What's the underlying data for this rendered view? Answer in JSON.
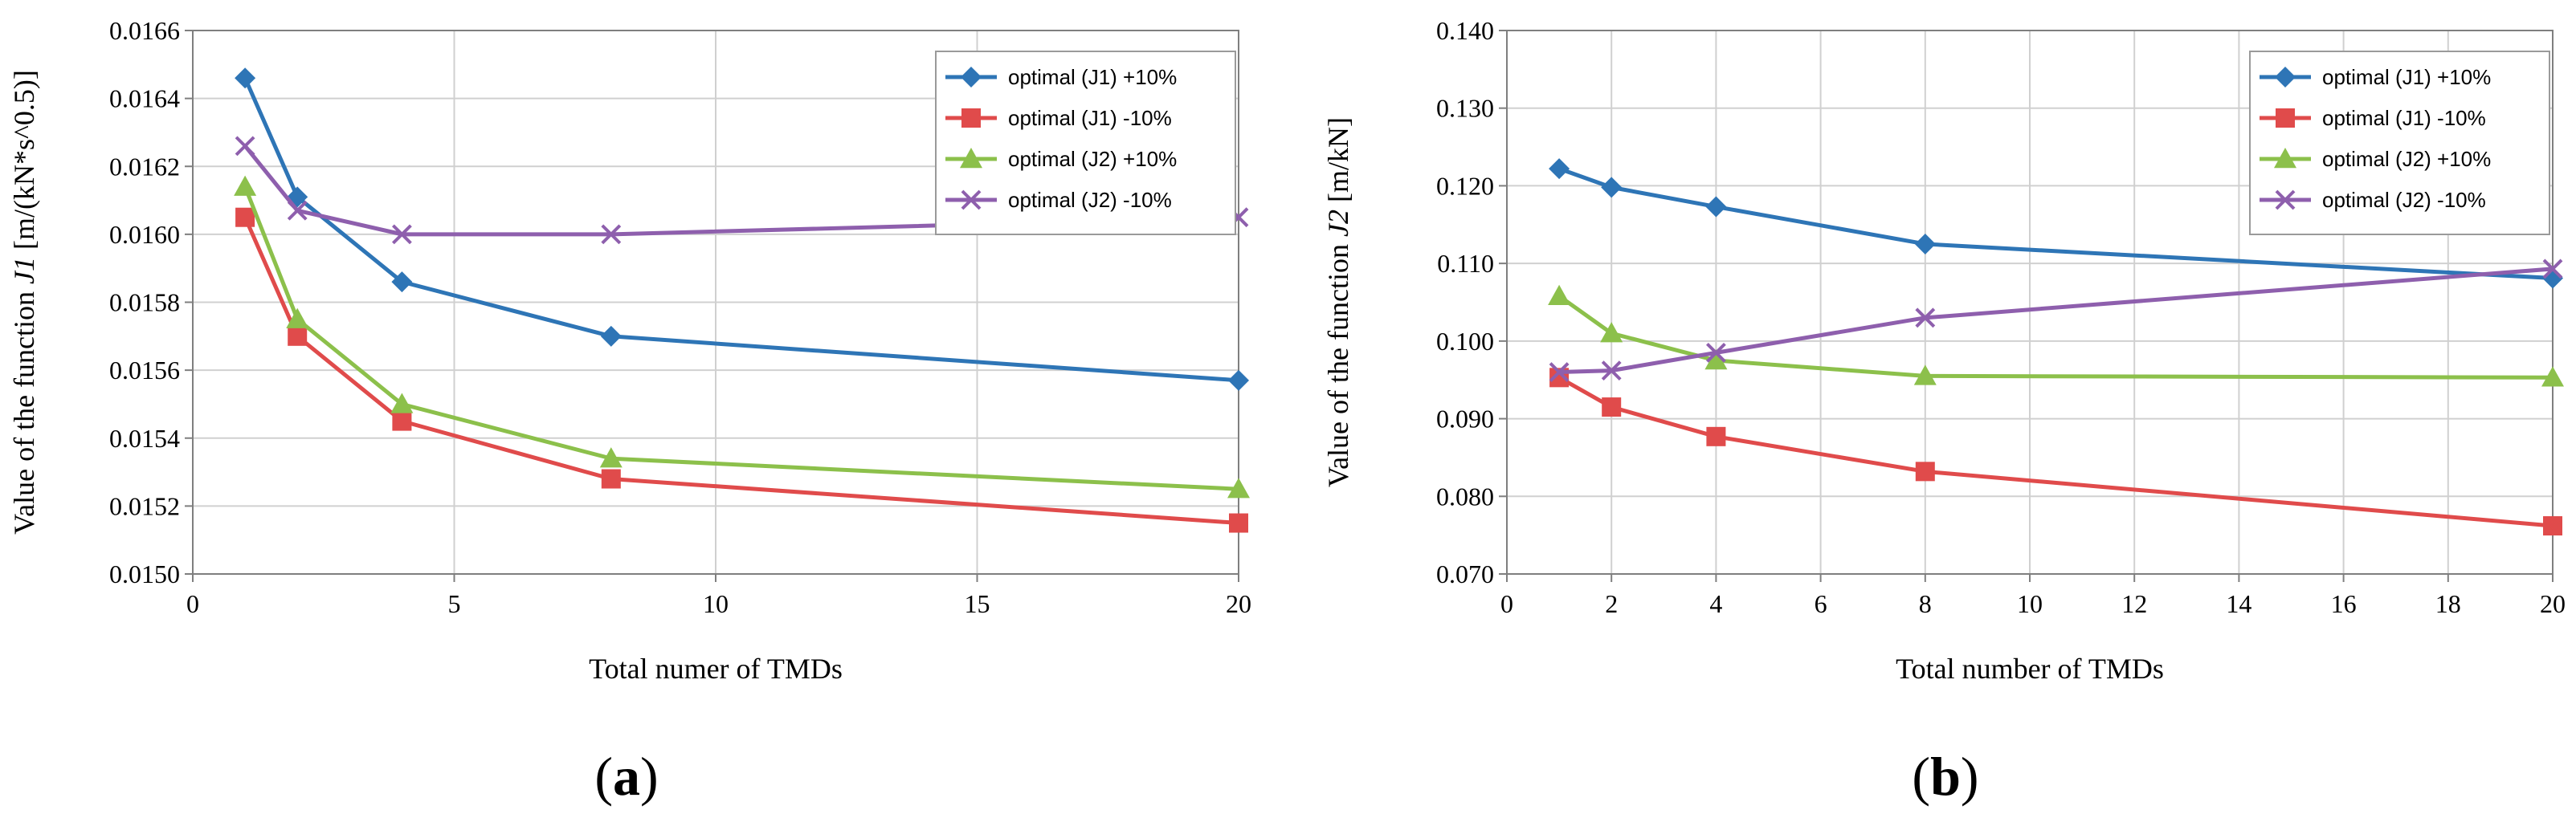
{
  "chart_data": [
    {
      "type": "line",
      "panel_label": "a",
      "xlabel": "Total numer of  TMDs",
      "ylabel_prefix": "Value of the function ",
      "ylabel_var": "J1",
      "ylabel_suffix": " [m/(kN*s^0.5)]",
      "xlim": [
        0,
        20
      ],
      "ylim": [
        0.015,
        0.0166
      ],
      "xticks": [
        0,
        5,
        10,
        15,
        20
      ],
      "xtick_labels": [
        "0",
        "5",
        "10",
        "15",
        "20"
      ],
      "yticks": [
        0.015,
        0.0152,
        0.0154,
        0.0156,
        0.0158,
        0.016,
        0.0162,
        0.0164,
        0.0166
      ],
      "ytick_labels": [
        "0.0150",
        "0.0152",
        "0.0154",
        "0.0156",
        "0.0158",
        "0.0160",
        "0.0162",
        "0.0164",
        "0.0166"
      ],
      "grid": true,
      "legend_position": "top-right",
      "series": [
        {
          "name": "optimal (J1) +10%",
          "color": "#2E75B6",
          "marker": "diamond",
          "x": [
            1,
            2,
            4,
            8,
            20
          ],
          "y": [
            0.01646,
            0.01611,
            0.01586,
            0.0157,
            0.01557
          ]
        },
        {
          "name": "optimal (J1) -10%",
          "color": "#E04B4B",
          "marker": "square",
          "x": [
            1,
            2,
            4,
            8,
            20
          ],
          "y": [
            0.01605,
            0.0157,
            0.01545,
            0.01528,
            0.01515
          ]
        },
        {
          "name": "optimal (J2) +10%",
          "color": "#8CC04B",
          "marker": "triangle",
          "x": [
            1,
            2,
            4,
            8,
            20
          ],
          "y": [
            0.01614,
            0.01575,
            0.0155,
            0.01534,
            0.01525
          ]
        },
        {
          "name": "optimal (J2) -10%",
          "color": "#8E5FAD",
          "marker": "x",
          "x": [
            1,
            2,
            4,
            8,
            20
          ],
          "y": [
            0.01626,
            0.01607,
            0.016,
            0.016,
            0.01605
          ]
        }
      ]
    },
    {
      "type": "line",
      "panel_label": "b",
      "xlabel": "Total number of TMDs",
      "ylabel_prefix": "Value of the function ",
      "ylabel_var": "J2",
      "ylabel_suffix": " [m/kN]",
      "xlim": [
        0,
        20
      ],
      "ylim": [
        0.07,
        0.14
      ],
      "xticks": [
        0,
        2,
        4,
        6,
        8,
        10,
        12,
        14,
        16,
        18,
        20
      ],
      "xtick_labels": [
        "0",
        "2",
        "4",
        "6",
        "8",
        "10",
        "12",
        "14",
        "16",
        "18",
        "20"
      ],
      "yticks": [
        0.07,
        0.08,
        0.09,
        0.1,
        0.11,
        0.12,
        0.13,
        0.14
      ],
      "ytick_labels": [
        "0.070",
        "0.080",
        "0.090",
        "0.100",
        "0.110",
        "0.120",
        "0.130",
        "0.140"
      ],
      "grid": true,
      "legend_position": "top-right",
      "series": [
        {
          "name": "optimal (J1) +10%",
          "color": "#2E75B6",
          "marker": "diamond",
          "x": [
            1,
            2,
            4,
            8,
            20
          ],
          "y": [
            0.1222,
            0.1198,
            0.1173,
            0.1125,
            0.1081
          ]
        },
        {
          "name": "optimal (J1) -10%",
          "color": "#E04B4B",
          "marker": "square",
          "x": [
            1,
            2,
            4,
            8,
            20
          ],
          "y": [
            0.0953,
            0.0915,
            0.0877,
            0.0832,
            0.0762
          ]
        },
        {
          "name": "optimal (J2) +10%",
          "color": "#8CC04B",
          "marker": "triangle",
          "x": [
            1,
            2,
            4,
            8,
            20
          ],
          "y": [
            0.1058,
            0.101,
            0.0975,
            0.0955,
            0.0953
          ]
        },
        {
          "name": "optimal (J2) -10%",
          "color": "#8E5FAD",
          "marker": "x",
          "x": [
            1,
            2,
            4,
            8,
            20
          ],
          "y": [
            0.096,
            0.0962,
            0.0985,
            0.103,
            0.1093
          ]
        }
      ]
    }
  ]
}
